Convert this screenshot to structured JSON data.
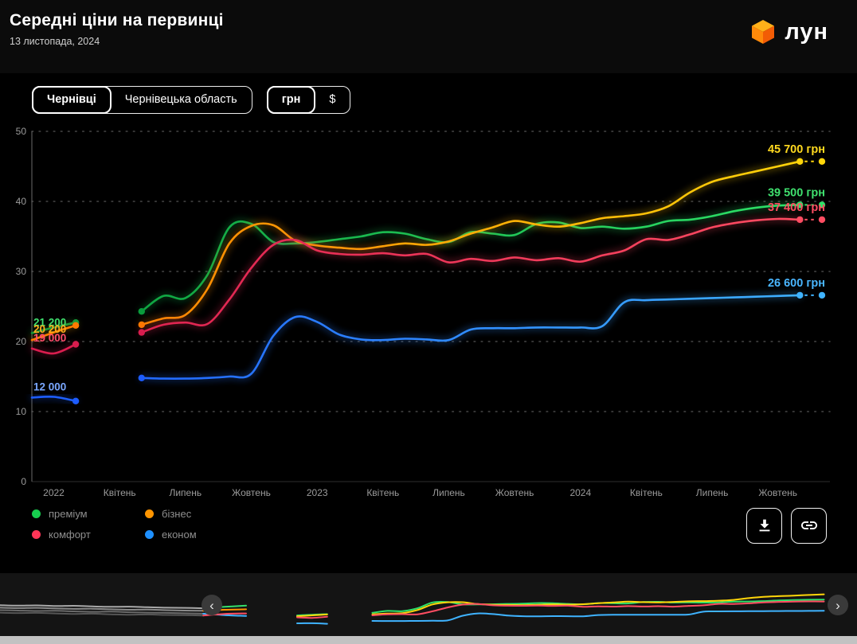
{
  "header": {
    "title": "Середні ціни на первинці",
    "date": "13 листопада, 2024",
    "logo_text": "лун",
    "logo_color": "#ff6b00"
  },
  "controls": {
    "city_toggle": {
      "options": [
        "Чернівці",
        "Чернівецька область"
      ],
      "selected": "Чернівці"
    },
    "currency_toggle": {
      "options": [
        "грн",
        "$"
      ],
      "selected": "грн"
    }
  },
  "chart_data": {
    "type": "line",
    "unit": "грн",
    "ylim": [
      0,
      50
    ],
    "yticks": [
      0,
      10,
      20,
      30,
      40,
      50
    ],
    "grid": "horizontal-dotted",
    "legend_position": "bottom-left",
    "x_ticks": [
      {
        "i": 1,
        "label": "2022"
      },
      {
        "i": 4,
        "label": "Квітень"
      },
      {
        "i": 7,
        "label": "Липень"
      },
      {
        "i": 10,
        "label": "Жовтень"
      },
      {
        "i": 13,
        "label": "2023"
      },
      {
        "i": 16,
        "label": "Квітень"
      },
      {
        "i": 19,
        "label": "Липень"
      },
      {
        "i": 22,
        "label": "Жовтень"
      },
      {
        "i": 25,
        "label": "2024"
      },
      {
        "i": 28,
        "label": "Квітень"
      },
      {
        "i": 31,
        "label": "Липень"
      },
      {
        "i": 34,
        "label": "Жовтень"
      }
    ],
    "series": [
      {
        "name": "преміум",
        "color_start": "#0a9c3c",
        "color_end": "#2fe269",
        "start_label": "21 200",
        "start_label_color": "#3fe06e",
        "end_label": "39 500 грн",
        "end_label_color": "#3fe06e",
        "end_value": 39.5,
        "pre_start_index": 0,
        "pre_values": [
          21.2,
          22.0,
          22.7
        ],
        "main_start_index": 5,
        "main_values": [
          24.3,
          26.5,
          26.2,
          29.5,
          36.3,
          36.8,
          34.2,
          34.0,
          34.2,
          34.6,
          35.0,
          35.6,
          35.4,
          34.6,
          34.2,
          35.6,
          35.4,
          35.2,
          36.8,
          37.0,
          36.2,
          36.4,
          36.1,
          36.4,
          37.2,
          37.4,
          37.9,
          38.6,
          39.1,
          39.4,
          39.5
        ]
      },
      {
        "name": "бізнес",
        "color_start": "#ff7a00",
        "color_end": "#ffd60a",
        "start_label": "20 200",
        "start_label_color": "#ffac1c",
        "end_label": "45 700 грн",
        "end_label_color": "#ffd91f",
        "end_value": 45.7,
        "pre_start_index": 0,
        "pre_values": [
          20.2,
          21.3,
          22.3
        ],
        "main_start_index": 5,
        "main_values": [
          22.4,
          23.3,
          23.8,
          27.5,
          34.0,
          36.5,
          36.6,
          34.4,
          33.7,
          33.4,
          33.2,
          33.6,
          34.0,
          33.8,
          34.3,
          35.4,
          36.3,
          37.2,
          36.7,
          36.4,
          36.9,
          37.6,
          37.9,
          38.3,
          39.3,
          41.3,
          42.8,
          43.6,
          44.3,
          45.0,
          45.7
        ]
      },
      {
        "name": "комфорт",
        "color_start": "#d91c4e",
        "color_end": "#ff4d62",
        "start_label": "19 000",
        "start_label_color": "#ff4d6d",
        "end_label": "37 400 грн",
        "end_label_color": "#ff4d62",
        "end_value": 37.4,
        "pre_start_index": 0,
        "pre_values": [
          19.0,
          18.3,
          19.6
        ],
        "main_start_index": 5,
        "main_values": [
          21.3,
          22.4,
          22.7,
          22.5,
          26.0,
          30.5,
          33.8,
          34.5,
          33.0,
          32.5,
          32.4,
          32.6,
          32.3,
          32.5,
          31.3,
          31.8,
          31.5,
          32.0,
          31.6,
          31.9,
          31.4,
          32.3,
          33.0,
          34.6,
          34.5,
          35.3,
          36.3,
          36.9,
          37.3,
          37.5,
          37.4
        ]
      },
      {
        "name": "економ",
        "color_start": "#1d5cff",
        "color_end": "#3fb3ff",
        "start_label": "12 000",
        "start_label_color": "#7aa7ff",
        "end_label": "26 600 грн",
        "end_label_color": "#49b6ff",
        "end_value": 26.6,
        "pre_start_index": 0,
        "pre_values": [
          12.0,
          12.1,
          11.5
        ],
        "main_start_index": 5,
        "main_values": [
          14.8,
          14.7,
          14.7,
          14.8,
          15.0,
          15.4,
          20.8,
          23.5,
          22.8,
          21.0,
          20.3,
          20.2,
          20.4,
          20.3,
          20.2,
          21.7,
          21.9,
          21.9,
          22.0,
          22.0,
          22.0,
          22.2,
          25.6,
          25.9,
          26.0,
          26.1,
          26.2,
          26.3,
          26.4,
          26.5,
          26.6
        ]
      }
    ]
  },
  "legend": [
    {
      "label": "преміум",
      "color": "#17cf4f"
    },
    {
      "label": "бізнес",
      "color": "#ff9500"
    },
    {
      "label": "комфорт",
      "color": "#ff3557"
    },
    {
      "label": "економ",
      "color": "#1e90ff"
    }
  ],
  "actions": {
    "icons": [
      "download",
      "link"
    ]
  },
  "minimap": {
    "nav_prev": "‹",
    "nav_next": "›",
    "left_series": [
      {
        "color": "#a8a8a8",
        "values": [
          17.6,
          17.4,
          17.5,
          17.2,
          17.3,
          17.0,
          16.8,
          16.9,
          16.6,
          16.4,
          16.3,
          16.1
        ],
        "tail_color": "#35e06b",
        "tail": [
          16.8,
          17.4
        ]
      },
      {
        "color": "#8a8a8a",
        "values": [
          16.4,
          16.2,
          16.3,
          16.0,
          15.8,
          15.9,
          15.6,
          15.4,
          15.5,
          15.2,
          15.0,
          14.9
        ],
        "tail_color": "#ff9500",
        "tail": [
          15.4,
          15.6
        ]
      },
      {
        "color": "#6a6a6a",
        "values": [
          15.2,
          15.0,
          14.8,
          14.9,
          14.6,
          14.4,
          14.5,
          14.2,
          14.0,
          13.9,
          13.7,
          13.5
        ],
        "tail_color": "#3fb3ff",
        "tail": [
          12.8,
          12.4
        ]
      },
      {
        "color": "#555555",
        "values": [
          14.0,
          13.8,
          13.9,
          13.6,
          13.4,
          13.5,
          13.2,
          13.0,
          13.1,
          12.9,
          12.8,
          12.6
        ],
        "tail_color": "#ff4d62",
        "tail": [
          13.4,
          13.6
        ]
      }
    ]
  }
}
